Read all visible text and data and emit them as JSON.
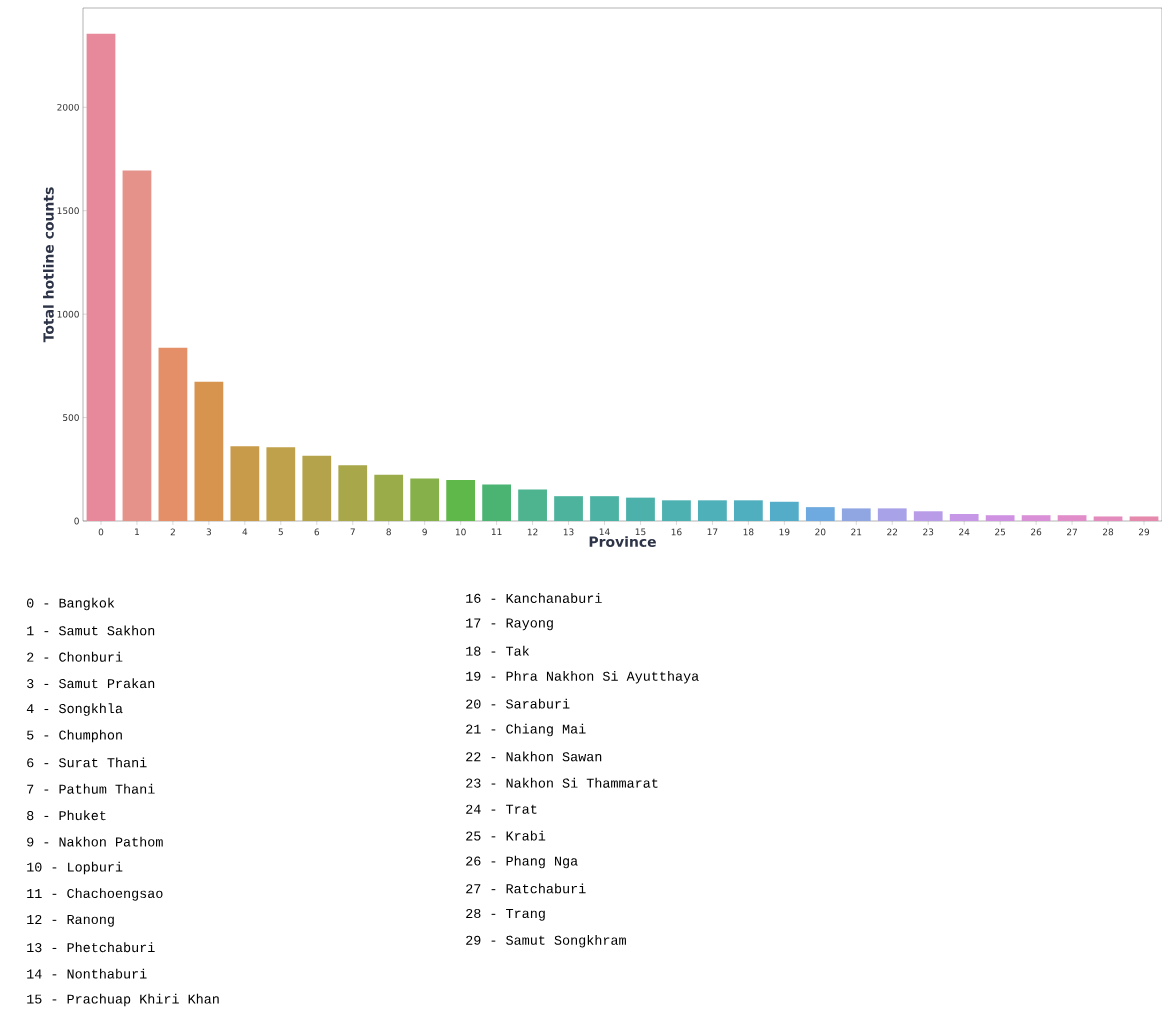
{
  "chart_data": {
    "type": "bar",
    "xlabel": "Province",
    "ylabel": "Total hotline counts",
    "categories": [
      "0",
      "1",
      "2",
      "3",
      "4",
      "5",
      "6",
      "7",
      "8",
      "9",
      "10",
      "11",
      "12",
      "13",
      "14",
      "15",
      "16",
      "17",
      "18",
      "19",
      "20",
      "21",
      "22",
      "23",
      "24",
      "25",
      "26",
      "27",
      "28",
      "29"
    ],
    "values": [
      2355,
      1695,
      837,
      673,
      362,
      357,
      316,
      270,
      224,
      205,
      198,
      177,
      152,
      120,
      120,
      113,
      100,
      100,
      100,
      93,
      67,
      61,
      61,
      47,
      34,
      28,
      28,
      28,
      22,
      22
    ],
    "colors": [
      "#e7899a",
      "#e5928a",
      "#e48f68",
      "#d7944e",
      "#c89b4b",
      "#bfa04b",
      "#b4a34a",
      "#a8a74a",
      "#9aab49",
      "#86b049",
      "#5fb84a",
      "#4bb473",
      "#4db48f",
      "#4db39d",
      "#4cb2a4",
      "#4cb1aa",
      "#4db0b1",
      "#4eb0b8",
      "#50afbf",
      "#53adc9",
      "#6ea9df",
      "#8fa6e3",
      "#a8a2e8",
      "#b89ce8",
      "#c697e7",
      "#cf92e2",
      "#d990d6",
      "#e08dca",
      "#e38bbc",
      "#e68aad"
    ],
    "ylim": [
      0,
      2480
    ],
    "yticks": [
      0,
      500,
      1000,
      1500,
      2000
    ],
    "annotations": [
      "0 - Bangkok",
      "1 - Samut Sakhon",
      "2 - Chonburi",
      "3 - Samut Prakan",
      "4 - Songkhla",
      "5 - Chumphon",
      "6 - Surat Thani",
      "7 - Pathum Thani",
      "8 - Phuket",
      "9 - Nakhon Pathom",
      "10 - Lopburi",
      "11 - Chachoengsao",
      "12 - Ranong",
      "13 - Phetchaburi",
      "14 - Nonthaburi",
      "15 - Prachuap Khiri Khan",
      "16 - Kanchanaburi",
      "17 - Rayong",
      "18 - Tak",
      "19 - Phra Nakhon Si Ayutthaya",
      "20 - Saraburi",
      "21 - Chiang Mai",
      "22 - Nakhon Sawan",
      "23 - Nakhon Si Thammarat",
      "24 - Trat",
      "25 - Krabi",
      "26 - Phang Nga",
      "27 - Ratchaburi",
      "28 - Trang",
      "29 - Samut Songkhram"
    ]
  }
}
